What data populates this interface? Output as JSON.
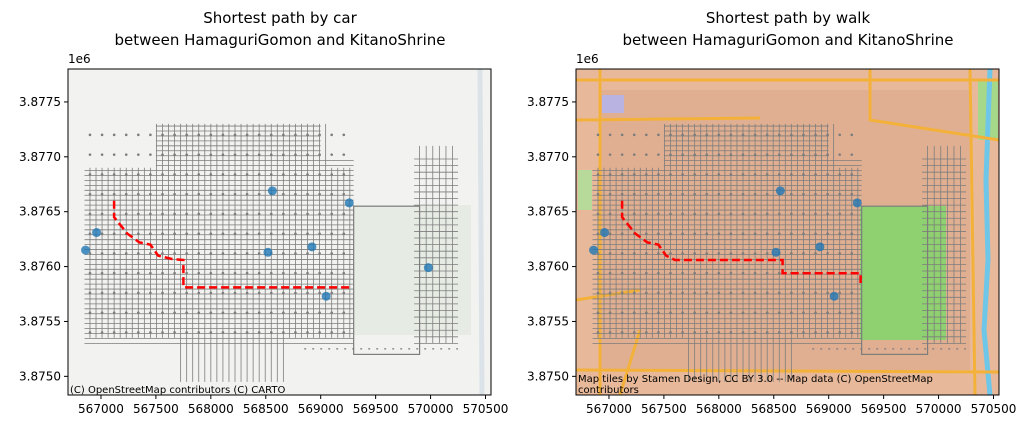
{
  "chart_data": [
    {
      "type": "scatter",
      "title": "Shortest path by car\nbetween HamaguriGomon and KitanoShrine",
      "x_ticks": [
        567000,
        567500,
        568000,
        568500,
        569000,
        569500,
        570000,
        570500
      ],
      "y_ticks": [
        3875000,
        3875500,
        3876000,
        3876500,
        3877000,
        3877500
      ],
      "y_tick_labels": [
        "3.8750",
        "3.8755",
        "3.8760",
        "3.8765",
        "3.8770",
        "3.8775"
      ],
      "y_offset_label": "1e6",
      "xlim": [
        566700,
        570550
      ],
      "ylim": [
        3874830,
        3877800
      ],
      "attribution": "(C) OpenStreetMap contributors (C) CARTO",
      "basemap": "light-gray",
      "points": [
        {
          "x": 566860,
          "y": 3876150
        },
        {
          "x": 566960,
          "y": 3876310
        },
        {
          "x": 568560,
          "y": 3876690
        },
        {
          "x": 569260,
          "y": 3876580
        },
        {
          "x": 568520,
          "y": 3876130
        },
        {
          "x": 568920,
          "y": 3876180
        },
        {
          "x": 569980,
          "y": 3875990
        },
        {
          "x": 569050,
          "y": 3875730
        }
      ],
      "route": {
        "color": "#ff0000",
        "path": [
          [
            567120,
            3876600
          ],
          [
            567120,
            3876450
          ],
          [
            567240,
            3876300
          ],
          [
            567350,
            3876220
          ],
          [
            567450,
            3876200
          ],
          [
            567520,
            3876100
          ],
          [
            567640,
            3876070
          ],
          [
            567750,
            3876060
          ],
          [
            567750,
            3875810
          ],
          [
            569290,
            3875810
          ]
        ]
      }
    },
    {
      "type": "scatter",
      "title": "Shortest path by walk\nbetween HamaguriGomon and KitanoShrine",
      "x_ticks": [
        567000,
        567500,
        568000,
        568500,
        569000,
        569500,
        570000,
        570500
      ],
      "y_ticks": [
        3875000,
        3875500,
        3876000,
        3876500,
        3877000,
        3877500
      ],
      "y_tick_labels": [
        "3.8750",
        "3.8755",
        "3.8760",
        "3.8765",
        "3.8770",
        "3.8775"
      ],
      "y_offset_label": "1e6",
      "xlim": [
        566700,
        570550
      ],
      "ylim": [
        3874830,
        3877800
      ],
      "attribution": "Map tiles by Stamen Design, CC BY 3.0 -- Map data (C) OpenStreetMap contributors",
      "basemap": "terrain",
      "points": [
        {
          "x": 566860,
          "y": 3876150
        },
        {
          "x": 566960,
          "y": 3876310
        },
        {
          "x": 568560,
          "y": 3876690
        },
        {
          "x": 569260,
          "y": 3876580
        },
        {
          "x": 568520,
          "y": 3876130
        },
        {
          "x": 568920,
          "y": 3876180
        },
        {
          "x": 569050,
          "y": 3875730
        }
      ],
      "route": {
        "color": "#ff0000",
        "path": [
          [
            567120,
            3876600
          ],
          [
            567120,
            3876450
          ],
          [
            567240,
            3876300
          ],
          [
            567350,
            3876220
          ],
          [
            567450,
            3876200
          ],
          [
            567520,
            3876100
          ],
          [
            567600,
            3876060
          ],
          [
            568580,
            3876060
          ],
          [
            568580,
            3875940
          ],
          [
            569290,
            3875940
          ],
          [
            569290,
            3875850
          ]
        ]
      }
    }
  ]
}
